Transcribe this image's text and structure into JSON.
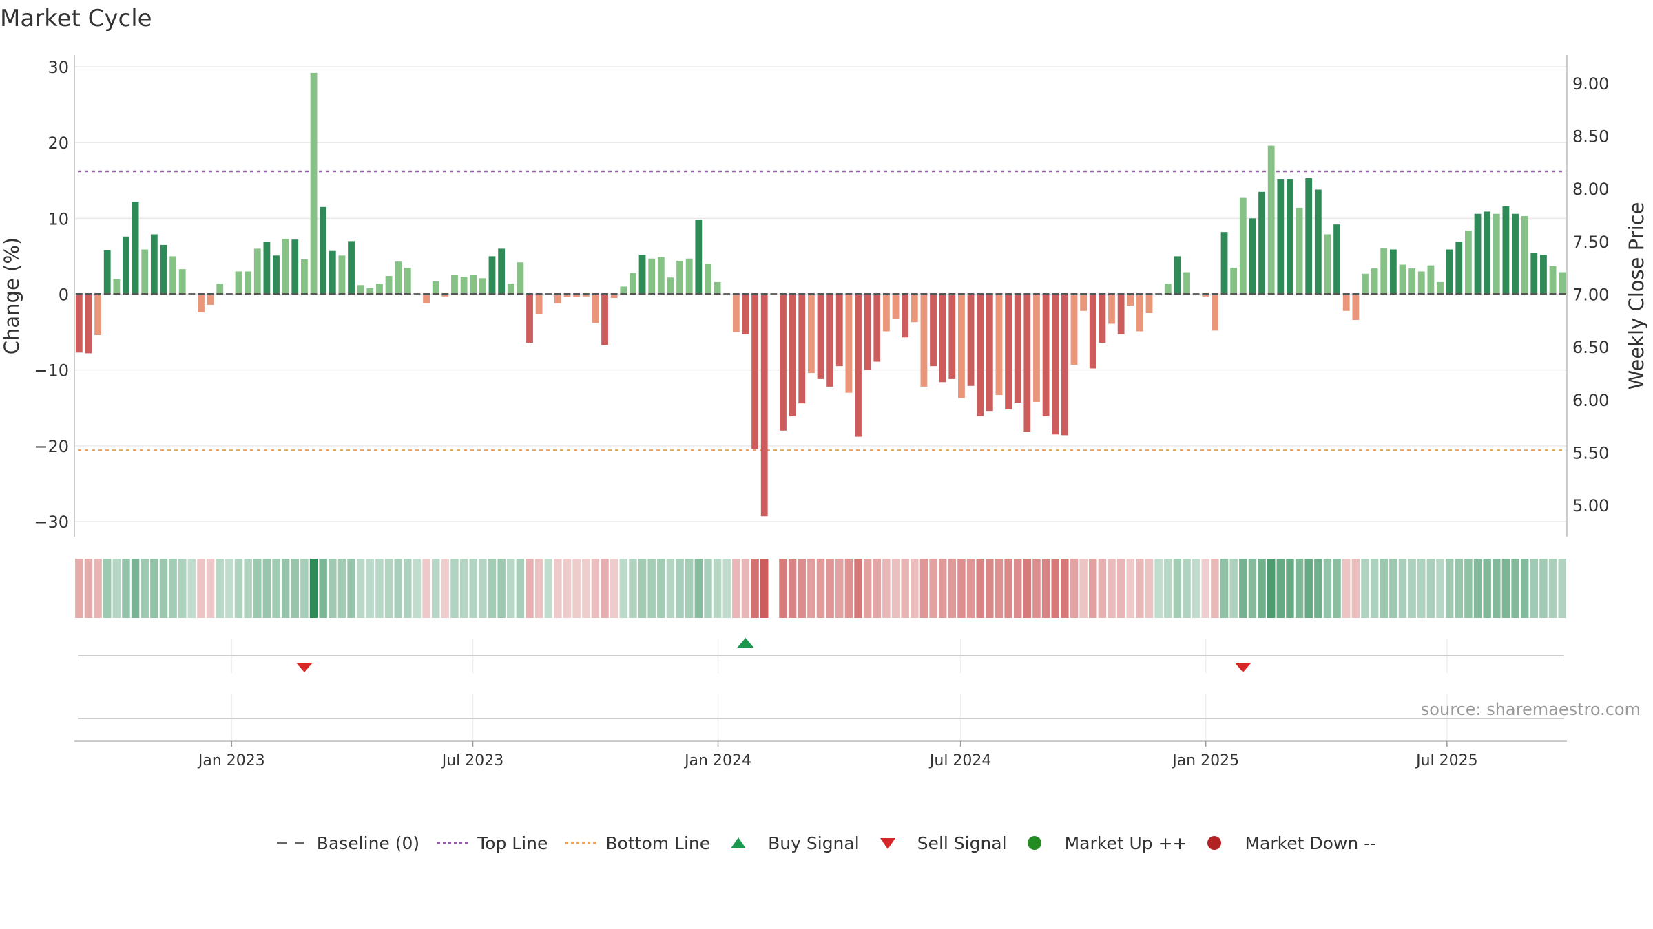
{
  "chart_data": {
    "type": "bar",
    "title": "Market Cycle",
    "ylabel_left": "Change (%)",
    "ylabel_right": "Weekly Close Price",
    "ylim_left": [
      -32,
      32
    ],
    "ylim_right": [
      4.7,
      9.3
    ],
    "yticks_left": [
      30,
      20,
      10,
      0,
      -10,
      -20,
      -30
    ],
    "ytick_labels_left": [
      "30",
      "20",
      "10",
      "0",
      "−10",
      "−20",
      "−30"
    ],
    "yticks_right": [
      9.0,
      8.5,
      8.0,
      7.5,
      7.0,
      6.5,
      6.0,
      5.5,
      5.0
    ],
    "ytick_labels_right": [
      "9.00",
      "8.50",
      "8.00",
      "7.50",
      "7.00",
      "6.50",
      "6.00",
      "5.50",
      "5.00"
    ],
    "x_start": "2022-09-05",
    "x_end": "2025-09-29",
    "x_tick_dates": [
      "2023-01-01",
      "2023-07-01",
      "2024-01-01",
      "2024-07-01",
      "2025-01-01",
      "2025-07-01"
    ],
    "x_tick_labels": [
      "Jan 2023",
      "Jul 2023",
      "Jan 2024",
      "Jul 2024",
      "Jan 2025",
      "Jul 2025"
    ],
    "top_line": 16.2,
    "bottom_line": -20.6,
    "baseline": 0,
    "values": [
      -7.7,
      -7.8,
      -5.4,
      5.8,
      2.0,
      7.6,
      12.2,
      5.9,
      7.9,
      6.5,
      5.0,
      3.3,
      0.0,
      -2.4,
      -1.4,
      1.4,
      0.0,
      3.0,
      3.0,
      6.0,
      6.9,
      5.1,
      7.3,
      7.2,
      4.6,
      29.2,
      11.5,
      5.7,
      5.1,
      7.0,
      1.2,
      0.8,
      1.4,
      2.4,
      4.3,
      3.5,
      0.0,
      -1.2,
      1.7,
      -0.3,
      2.5,
      2.3,
      2.5,
      2.1,
      5.0,
      6.0,
      1.4,
      4.2,
      -6.4,
      -2.6,
      0.0,
      -1.2,
      -0.4,
      -0.4,
      -0.3,
      -3.8,
      -6.7,
      -0.5,
      1.0,
      2.8,
      5.2,
      4.7,
      4.9,
      2.2,
      4.4,
      4.7,
      9.8,
      4.0,
      1.6,
      0.0,
      -5.0,
      -5.3,
      -20.4,
      -29.3,
      0.0,
      -18.0,
      -16.1,
      -14.4,
      -10.4,
      -11.2,
      -12.2,
      -9.5,
      -13.0,
      -18.8,
      -10.0,
      -8.9,
      -4.9,
      -3.3,
      -5.7,
      -3.7,
      -12.2,
      -9.5,
      -11.6,
      -11.2,
      -13.7,
      -12.1,
      -16.1,
      -15.4,
      -13.3,
      -15.2,
      -14.3,
      -18.2,
      -14.2,
      -16.1,
      -18.5,
      -18.6,
      -9.3,
      -2.2,
      -9.8,
      -6.4,
      -3.9,
      -5.3,
      -1.5,
      -4.9,
      -2.5,
      0.0,
      1.4,
      5.0,
      2.9,
      0.0,
      -0.3,
      -4.8,
      8.2,
      3.5,
      12.7,
      10.0,
      13.5,
      19.6,
      15.2,
      15.2,
      11.4,
      15.3,
      13.8,
      7.9,
      9.2,
      -2.2,
      -3.4,
      2.7,
      3.4,
      6.1,
      5.9,
      3.9,
      3.4,
      3.0,
      3.8,
      1.6,
      5.9,
      6.9,
      8.4,
      10.6,
      10.9,
      10.6,
      11.6,
      10.6,
      10.3,
      5.4,
      5.2,
      3.7,
      2.9
    ],
    "colors": {
      "up_strong": "#2e8b57",
      "up_light": "#86c186",
      "down_strong": "#cd5c5c",
      "down_light": "#e9967a",
      "top_line": "#9b59b6",
      "bottom_line": "#f0a050",
      "baseline": "#555555",
      "buy": "#1a9850",
      "sell": "#d62728",
      "market_up": "#228b22",
      "market_down": "#b22222"
    },
    "signals": [
      {
        "type": "sell",
        "index": 24
      },
      {
        "type": "buy",
        "index": 71
      },
      {
        "type": "sell",
        "index": 124
      }
    ],
    "source": "source: sharemaestro.com",
    "legend": [
      {
        "key": "baseline",
        "label": "Baseline (0)"
      },
      {
        "key": "top",
        "label": "Top Line"
      },
      {
        "key": "bottom",
        "label": "Bottom Line"
      },
      {
        "key": "buy",
        "label": "Buy Signal"
      },
      {
        "key": "sell",
        "label": "Sell Signal"
      },
      {
        "key": "up",
        "label": "Market Up ++"
      },
      {
        "key": "down",
        "label": "Market Down --"
      }
    ],
    "legend_position": "bottom-center"
  }
}
